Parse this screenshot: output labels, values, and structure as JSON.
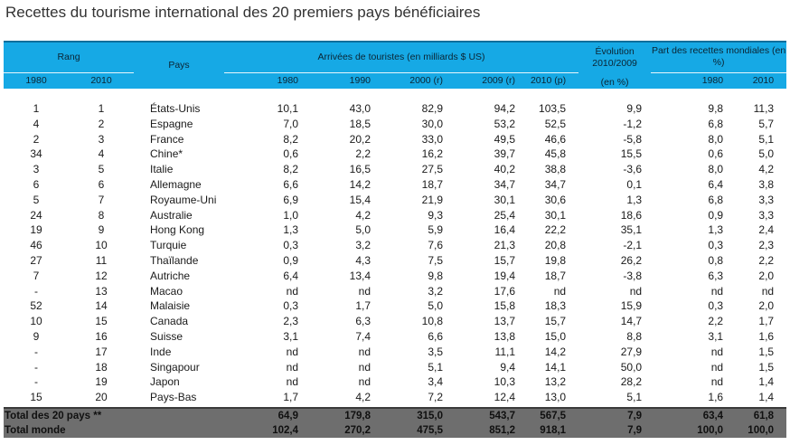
{
  "title": "Recettes du tourisme international des 20 premiers pays bénéficiaires",
  "header": {
    "rang": "Rang",
    "pays": "Pays",
    "arrivees": "Arrivées de touristes (en milliards $ US)",
    "evolution_l1": "Évolution",
    "evolution_l2": "2010/2009",
    "evolution_l3": "(en %)",
    "part": "Part des recettes mondiales (en %)",
    "sub": [
      "1980",
      "2010",
      "1980",
      "1990",
      "2000 (r)",
      "2009 (r)",
      "2010 (p)",
      "1980",
      "2010"
    ]
  },
  "rows": [
    [
      "1",
      "1",
      "États-Unis",
      "10,1",
      "43,0",
      "82,9",
      "94,2",
      "103,5",
      "9,9",
      "9,8",
      "11,3"
    ],
    [
      "4",
      "2",
      "Espagne",
      "7,0",
      "18,5",
      "30,0",
      "53,2",
      "52,5",
      "-1,2",
      "6,8",
      "5,7"
    ],
    [
      "2",
      "3",
      "France",
      "8,2",
      "20,2",
      "33,0",
      "49,5",
      "46,6",
      "-5,8",
      "8,0",
      "5,1"
    ],
    [
      "34",
      "4",
      "Chine*",
      "0,6",
      "2,2",
      "16,2",
      "39,7",
      "45,8",
      "15,5",
      "0,6",
      "5,0"
    ],
    [
      "3",
      "5",
      "Italie",
      "8,2",
      "16,5",
      "27,5",
      "40,2",
      "38,8",
      "-3,6",
      "8,0",
      "4,2"
    ],
    [
      "6",
      "6",
      "Allemagne",
      "6,6",
      "14,2",
      "18,7",
      "34,7",
      "34,7",
      "0,1",
      "6,4",
      "3,8"
    ],
    [
      "5",
      "7",
      "Royaume-Uni",
      "6,9",
      "15,4",
      "21,9",
      "30,1",
      "30,6",
      "1,3",
      "6,8",
      "3,3"
    ],
    [
      "24",
      "8",
      "Australie",
      "1,0",
      "4,2",
      "9,3",
      "25,4",
      "30,1",
      "18,6",
      "0,9",
      "3,3"
    ],
    [
      "19",
      "9",
      "Hong Kong",
      "1,3",
      "5,0",
      "5,9",
      "16,4",
      "22,2",
      "35,1",
      "1,3",
      "2,4"
    ],
    [
      "46",
      "10",
      "Turquie",
      "0,3",
      "3,2",
      "7,6",
      "21,3",
      "20,8",
      "-2,1",
      "0,3",
      "2,3"
    ],
    [
      "27",
      "11",
      "Thaïlande",
      "0,9",
      "4,3",
      "7,5",
      "15,7",
      "19,8",
      "26,2",
      "0,8",
      "2,2"
    ],
    [
      "7",
      "12",
      "Autriche",
      "6,4",
      "13,4",
      "9,8",
      "19,4",
      "18,7",
      "-3,8",
      "6,3",
      "2,0"
    ],
    [
      "-",
      "13",
      "Macao",
      "nd",
      "nd",
      "3,2",
      "17,6",
      "nd",
      "nd",
      "nd",
      "nd"
    ],
    [
      "52",
      "14",
      "Malaisie",
      "0,3",
      "1,7",
      "5,0",
      "15,8",
      "18,3",
      "15,9",
      "0,3",
      "2,0"
    ],
    [
      "10",
      "15",
      "Canada",
      "2,3",
      "6,3",
      "10,8",
      "13,7",
      "15,7",
      "14,7",
      "2,2",
      "1,7"
    ],
    [
      "9",
      "16",
      "Suisse",
      "3,1",
      "7,4",
      "6,6",
      "13,8",
      "15,0",
      "8,8",
      "3,1",
      "1,6"
    ],
    [
      "-",
      "17",
      "Inde",
      "nd",
      "nd",
      "3,5",
      "11,1",
      "14,2",
      "27,9",
      "nd",
      "1,5"
    ],
    [
      "-",
      "18",
      "Singapour",
      "nd",
      "nd",
      "5,1",
      "9,4",
      "14,1",
      "50,0",
      "nd",
      "1,5"
    ],
    [
      "-",
      "19",
      "Japon",
      "nd",
      "nd",
      "3,4",
      "10,3",
      "13,2",
      "28,2",
      "nd",
      "1,4"
    ],
    [
      "15",
      "20",
      "Pays-Bas",
      "1,7",
      "4,2",
      "7,2",
      "12,4",
      "13,0",
      "5,1",
      "1,6",
      "1,4"
    ]
  ],
  "totals": [
    [
      "Total des 20 pays **",
      "64,9",
      "179,8",
      "315,0",
      "543,7",
      "567,5",
      "7,9",
      "63,4",
      "61,8"
    ],
    [
      "Total monde",
      "102,4",
      "270,2",
      "475,5",
      "851,2",
      "918,1",
      "7,9",
      "100,0",
      "100,0"
    ]
  ]
}
